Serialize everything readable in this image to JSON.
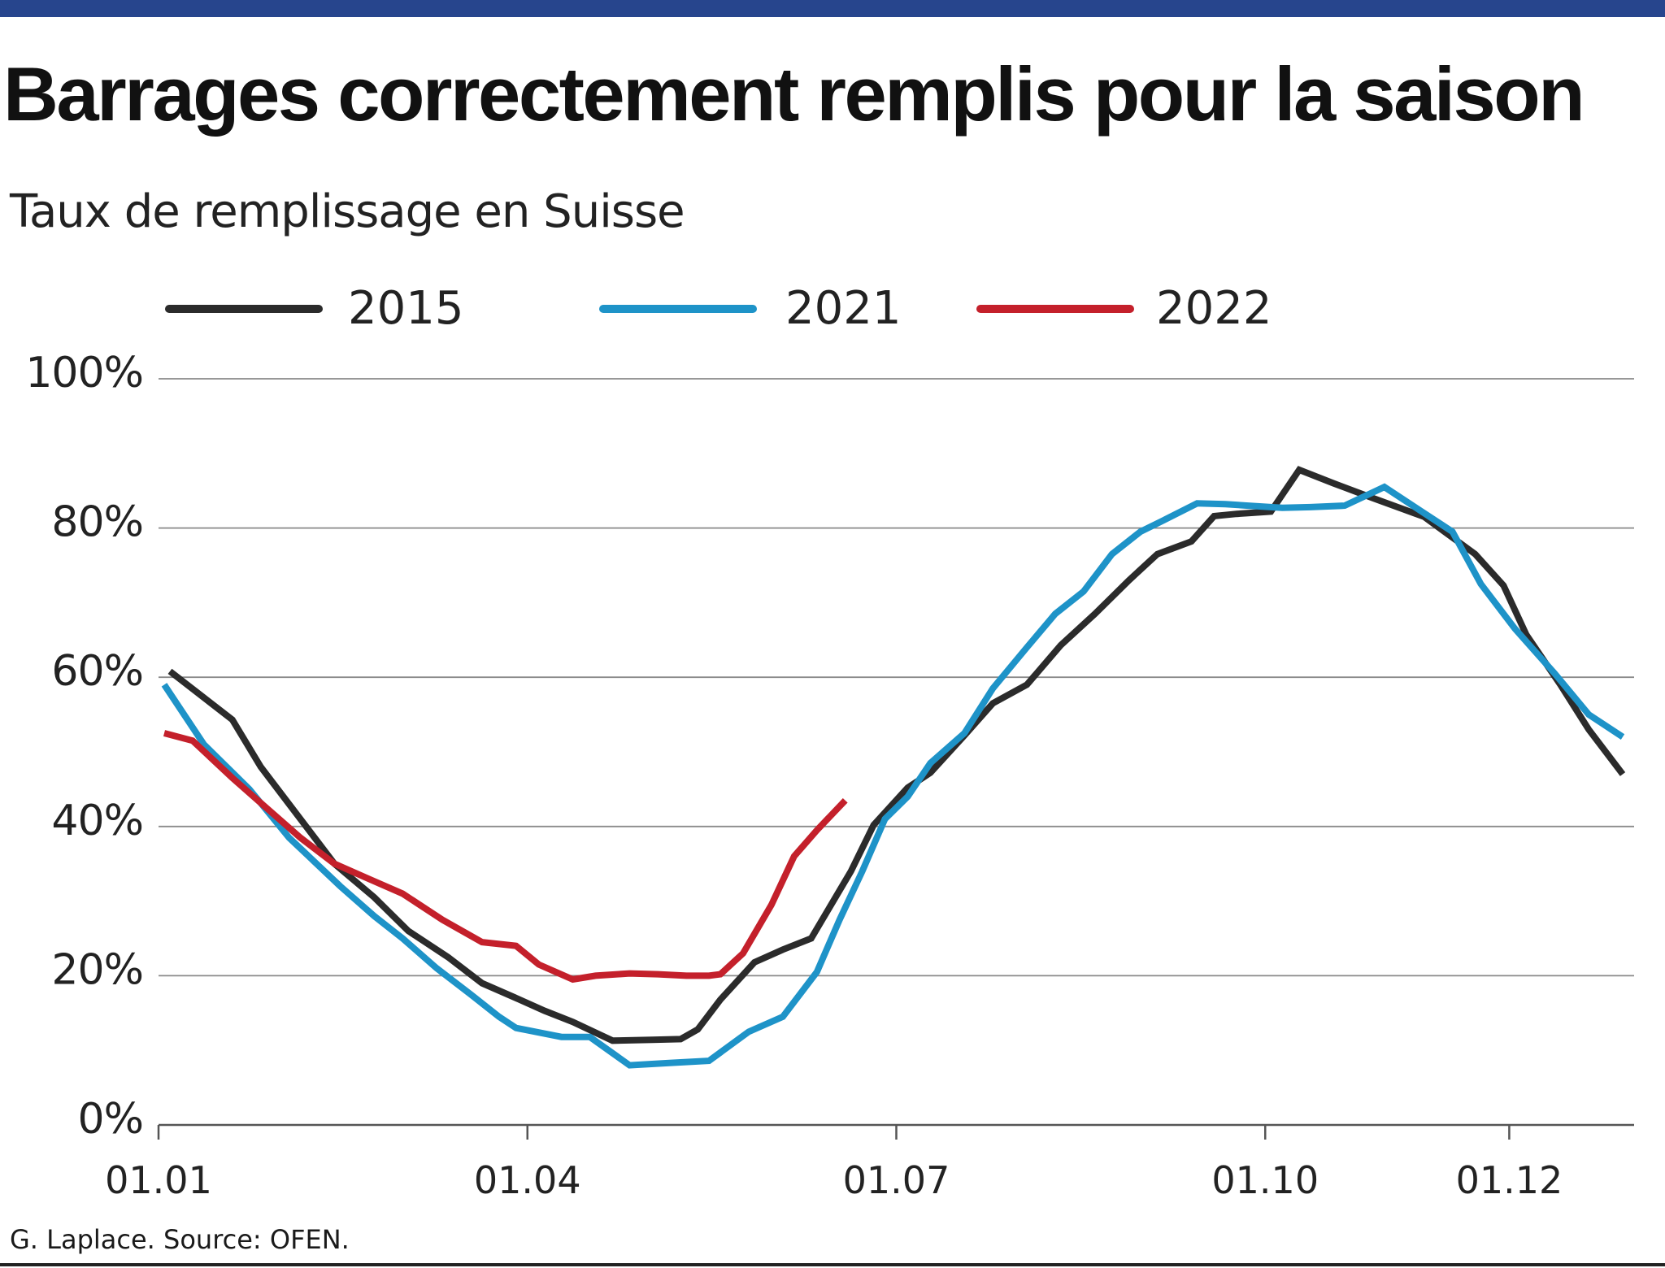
{
  "header": {
    "title": "Barrages correctement remplis pour la saison",
    "subtitle": "Taux de remplissage en Suisse"
  },
  "footer": {
    "source": "G. Laplace. Source: OFEN."
  },
  "colors": {
    "top_bar": "#27458d",
    "grid": "#8a8a8a",
    "axis": "#555555"
  },
  "chart_data": {
    "type": "line",
    "title": "Barrages correctement remplis pour la saison",
    "subtitle": "Taux de remplissage en Suisse",
    "xlabel": "",
    "ylabel": "",
    "x_unit": "week of year",
    "xlim": [
      1,
      53
    ],
    "ylim": [
      0,
      100
    ],
    "y_ticks": [
      0,
      20,
      40,
      60,
      80,
      100
    ],
    "y_tick_labels": [
      "0%",
      "20%",
      "40%",
      "60%",
      "80%",
      "100%"
    ],
    "x_ticks": [
      1,
      14,
      27,
      40,
      48.6
    ],
    "x_tick_labels": [
      "01.01",
      "01.04",
      "01.07",
      "01.10",
      "01.12"
    ],
    "grid": "horizontal",
    "legend_position": "top",
    "series": [
      {
        "name": "2015",
        "color": "#2b2b2b",
        "x": [
          1.4,
          3.6,
          4.6,
          5.6,
          7.2,
          8.6,
          9.8,
          11.2,
          12.4,
          13.6,
          14.6,
          15.6,
          17,
          18.4,
          19.4,
          20,
          20.8,
          22,
          23,
          24,
          25.4,
          26.2,
          27.4,
          28.2,
          29.4,
          30.4,
          31.6,
          32.8,
          34,
          35.2,
          36.2,
          37.4,
          38.2,
          39,
          40.2,
          41.2,
          42.4,
          43.8,
          45.6,
          47.4,
          48.4,
          49.2,
          50.4,
          51.4,
          52.6
        ],
        "y": [
          60.8,
          54.3,
          48,
          43,
          35,
          30.5,
          26,
          22.5,
          19,
          17,
          15.3,
          13.8,
          11.3,
          11.4,
          11.5,
          12.8,
          16.8,
          21.8,
          23.5,
          25,
          34,
          40.2,
          45.2,
          47.2,
          52.2,
          56.5,
          59,
          64.3,
          68.5,
          73,
          76.5,
          78.2,
          81.6,
          81.9,
          82.2,
          87.8,
          86,
          84,
          81.5,
          76.5,
          72.3,
          65.7,
          59,
          53,
          47
        ]
      },
      {
        "name": "2021",
        "color": "#1e93c8",
        "x": [
          1.2,
          2.6,
          4.2,
          5.6,
          7.4,
          8.6,
          9.6,
          10.8,
          12,
          13,
          13.6,
          15.2,
          16.2,
          17.6,
          19,
          20.4,
          21.8,
          23,
          24.2,
          25,
          25.8,
          26.6,
          27.4,
          28.2,
          29.4,
          30.4,
          31.6,
          32.6,
          33.6,
          34.6,
          35.6,
          36.4,
          37.6,
          38.6,
          39.4,
          40.6,
          41.6,
          42.8,
          44.2,
          45.4,
          46.6,
          47.6,
          48.8,
          50.2,
          51.4,
          52.6
        ],
        "y": [
          59,
          51,
          45,
          38.5,
          32,
          28,
          25,
          21,
          17.5,
          14.5,
          13,
          11.8,
          11.8,
          8,
          8.3,
          8.6,
          12.5,
          14.5,
          20.5,
          27.5,
          34,
          41,
          44,
          48.5,
          52.5,
          58.5,
          64,
          68.5,
          71.5,
          76.5,
          79.5,
          81,
          83.3,
          83.2,
          83,
          82.7,
          82.8,
          83,
          85.5,
          82.5,
          79.5,
          72.5,
          66.5,
          60.5,
          55,
          52
        ]
      },
      {
        "name": "2022",
        "color": "#c4202b",
        "x": [
          1.2,
          2.2,
          3.6,
          4.8,
          6,
          7.2,
          8.4,
          9.6,
          11,
          12.4,
          13.6,
          14.4,
          15.6,
          16.4,
          17.6,
          18.6,
          19.6,
          20.4,
          20.8,
          21.6,
          22.6,
          23.4,
          24.2,
          25.2
        ],
        "y": [
          52.5,
          51.5,
          46.5,
          42.5,
          38.5,
          35,
          33,
          31,
          27.5,
          24.5,
          24,
          21.5,
          19.5,
          20,
          20.3,
          20.2,
          20,
          20,
          20.2,
          23,
          29.5,
          36,
          39.5,
          43.5
        ]
      }
    ]
  }
}
